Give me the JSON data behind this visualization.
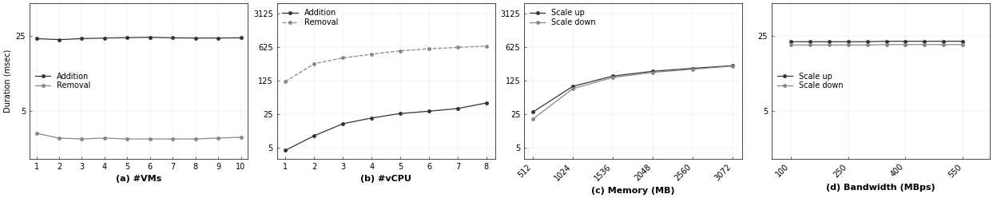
{
  "subplot_a": {
    "xlabel": "(a) #VMs",
    "ylabel": "Duration (msec)",
    "xticks": [
      1,
      2,
      3,
      4,
      5,
      6,
      7,
      8,
      9,
      10
    ],
    "yticks": [
      5,
      25
    ],
    "xlim": [
      0.7,
      10.3
    ],
    "ylim_log": [
      1.8,
      50
    ],
    "addition_x": [
      1,
      2,
      3,
      4,
      5,
      6,
      7,
      8,
      9,
      10
    ],
    "addition_y": [
      23.5,
      23.0,
      23.5,
      23.8,
      24.0,
      24.2,
      23.9,
      23.8,
      23.8,
      23.9
    ],
    "removal_x": [
      1,
      2,
      3,
      4,
      5,
      6,
      7,
      8,
      9,
      10
    ],
    "removal_y": [
      3.1,
      2.8,
      2.75,
      2.8,
      2.75,
      2.75,
      2.75,
      2.75,
      2.8,
      2.85
    ],
    "legend_labels": [
      "Addition",
      "Removal"
    ],
    "legend_loc": "center left",
    "addition_linestyle": "-",
    "removal_linestyle": "-"
  },
  "subplot_b": {
    "xlabel": "(b) #vCPU",
    "xticks": [
      1,
      2,
      3,
      4,
      5,
      6,
      7,
      8
    ],
    "yticks": [
      5,
      25,
      125,
      625,
      3125
    ],
    "xlim": [
      0.7,
      8.3
    ],
    "ylim_log": [
      3,
      5000
    ],
    "addition_x": [
      1,
      2,
      3,
      4,
      5,
      6,
      7,
      8
    ],
    "addition_y": [
      4.5,
      9,
      16,
      21,
      26,
      29,
      33,
      43
    ],
    "removal_x": [
      1,
      2,
      3,
      4,
      5,
      6,
      7,
      8
    ],
    "removal_y": [
      120,
      280,
      370,
      440,
      520,
      570,
      610,
      650
    ],
    "legend_labels": [
      "Addition",
      "Removal"
    ],
    "legend_loc": "upper left",
    "addition_linestyle": "-",
    "removal_linestyle": "--"
  },
  "subplot_c": {
    "xlabel": "(c) Memory (MB)",
    "xticks": [
      512,
      1024,
      1536,
      2048,
      2560,
      3072
    ],
    "yticks": [
      5,
      25,
      125,
      625,
      3125
    ],
    "xlim": [
      400,
      3200
    ],
    "ylim_log": [
      3,
      5000
    ],
    "scaleup_x": [
      512,
      1024,
      1536,
      2048,
      2560,
      3072
    ],
    "scaleup_y": [
      28,
      95,
      155,
      195,
      225,
      255
    ],
    "scaledown_x": [
      512,
      1024,
      1536,
      2048,
      2560,
      3072
    ],
    "scaledown_y": [
      20,
      85,
      145,
      185,
      215,
      250
    ],
    "legend_labels": [
      "Scale up",
      "Scale down"
    ],
    "legend_loc": "upper left",
    "scaleup_linestyle": "-",
    "scaledown_linestyle": "-"
  },
  "subplot_d": {
    "xlabel": "(d) Bandwidth (MBps)",
    "xticks": [
      100,
      250,
      400,
      550
    ],
    "yticks": [
      5,
      25
    ],
    "xlim": [
      50,
      620
    ],
    "ylim_log": [
      1.8,
      50
    ],
    "scaleup_x": [
      100,
      150,
      200,
      250,
      300,
      350,
      400,
      450,
      500,
      550
    ],
    "scaleup_y": [
      22,
      22,
      22,
      22,
      22,
      22.2,
      22.2,
      22.2,
      22.2,
      22.2
    ],
    "scaledown_x": [
      100,
      150,
      200,
      250,
      300,
      350,
      400,
      450,
      500,
      550
    ],
    "scaledown_y": [
      20.5,
      20.5,
      20.5,
      20.5,
      20.5,
      20.7,
      20.7,
      20.7,
      20.7,
      20.7
    ],
    "legend_labels": [
      "Scale up",
      "Scale down"
    ],
    "legend_loc": "center left",
    "scaleup_linestyle": "-",
    "scaledown_linestyle": "-"
  },
  "line_color_dark": "#333333",
  "line_color_light": "#888888",
  "marker_style": "o",
  "markersize": 2.5,
  "linewidth": 0.9,
  "fontsize_ylabel": 7,
  "fontsize_tick": 7,
  "fontsize_legend": 7,
  "fontsize_xlabel": 8
}
